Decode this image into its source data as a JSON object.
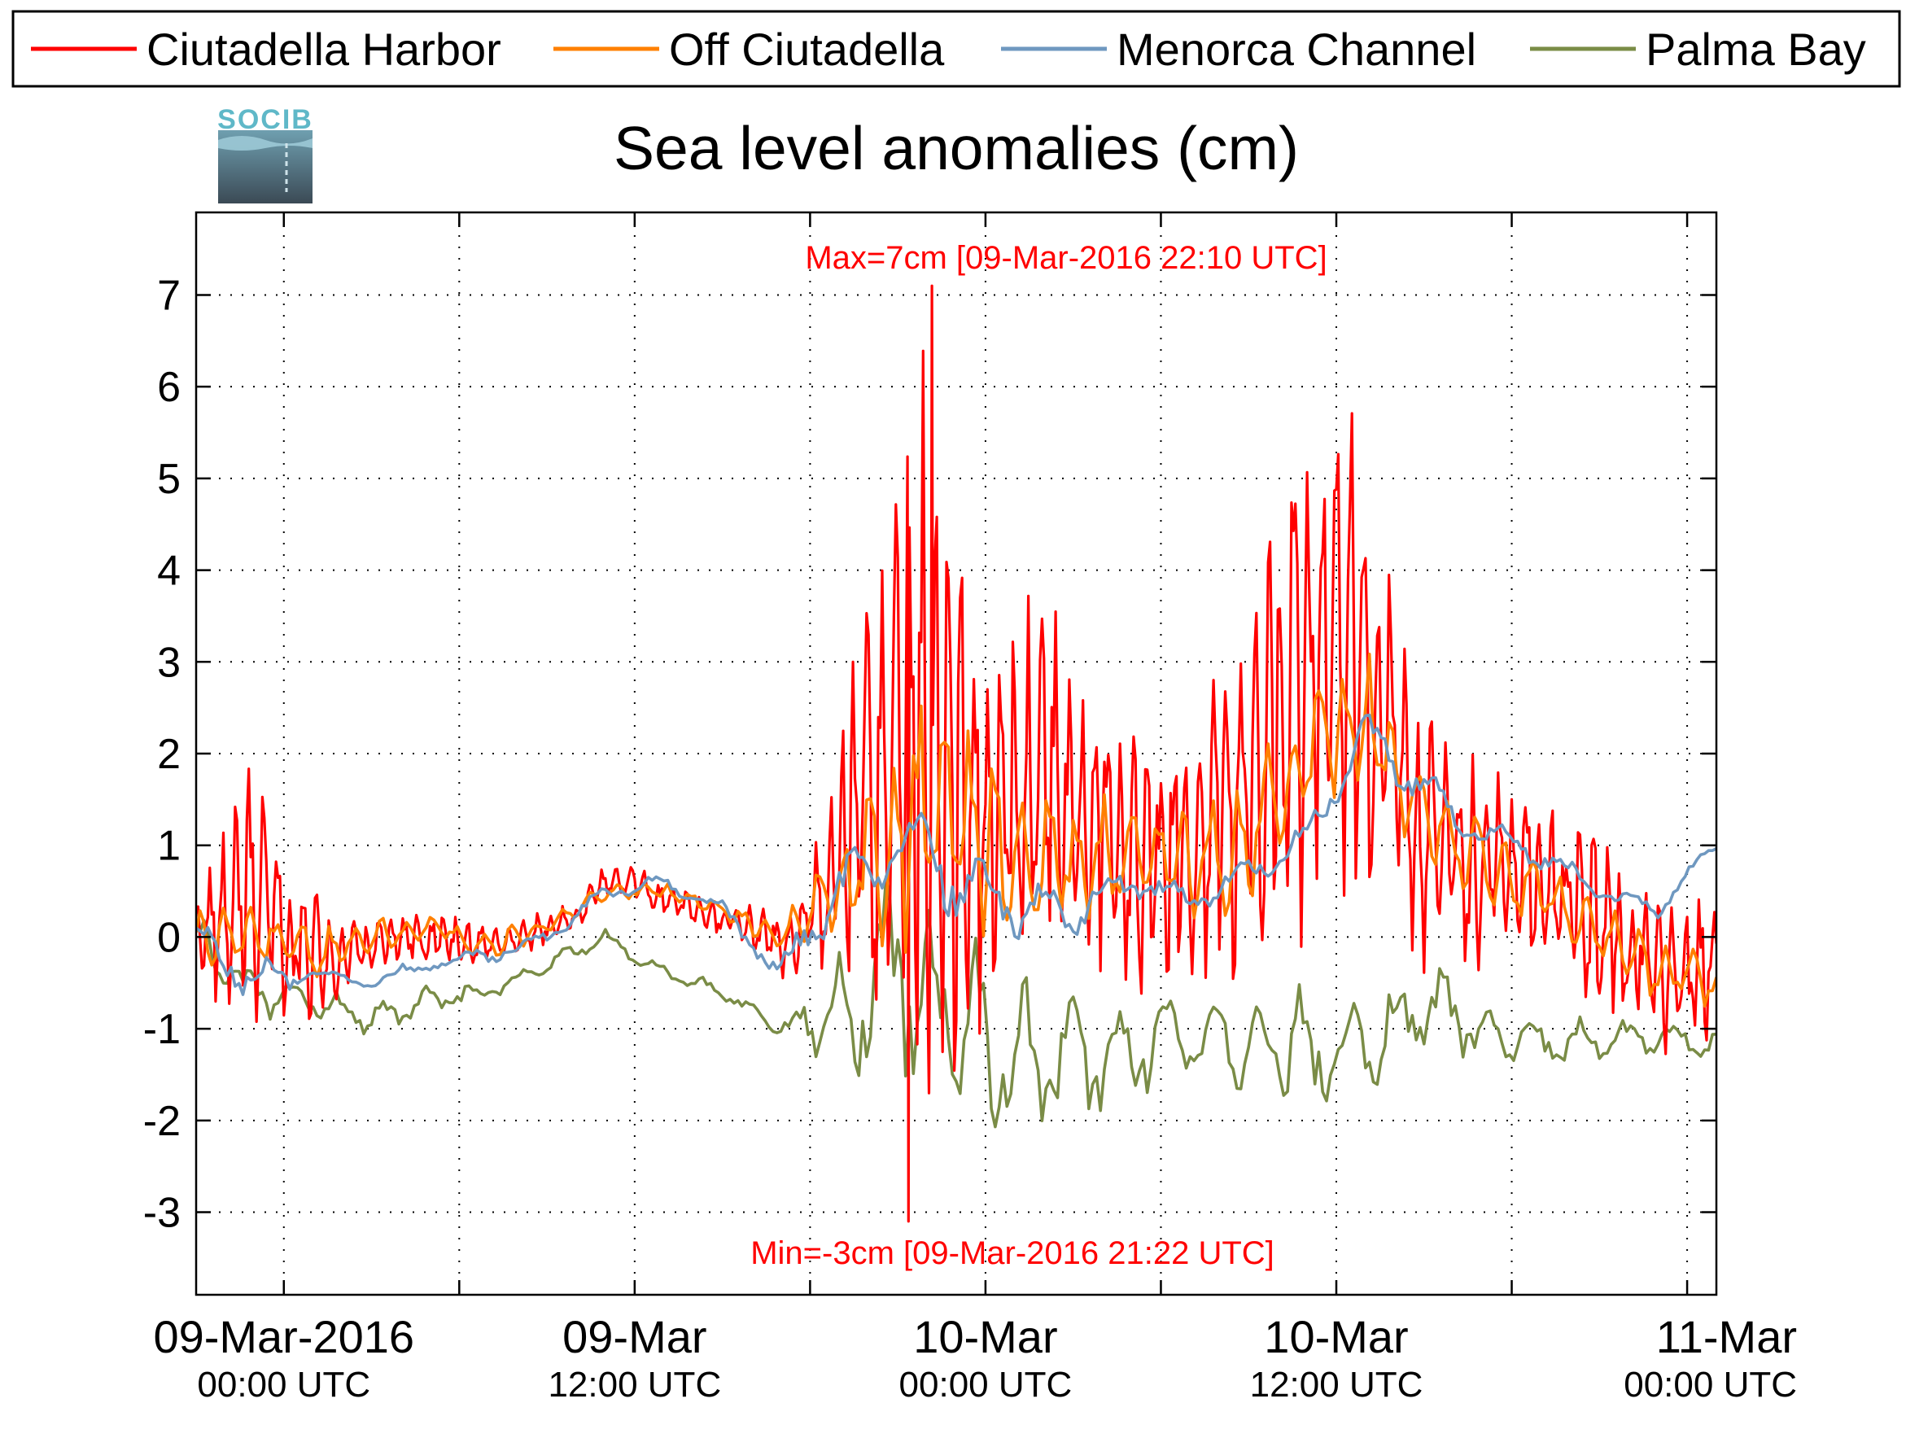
{
  "chart_data": {
    "type": "line",
    "title": "Sea level anomalies (cm)",
    "xlabel": "",
    "ylabel": "",
    "ylim": [
      -3.9,
      7.9
    ],
    "xlim": [
      "2016-03-08T21:00",
      "2016-03-11T01:00"
    ],
    "grid": true,
    "legend_position": "top",
    "y_ticks": [
      -3,
      -2,
      -1,
      0,
      1,
      2,
      3,
      4,
      5,
      6,
      7
    ],
    "y_tick_labels": [
      "-3",
      "-2",
      "-1",
      "0",
      "1",
      "2",
      "3",
      "4",
      "5",
      "6",
      "7"
    ],
    "x_minor_ticks": [
      "2016-03-09T00:00",
      "2016-03-09T06:00",
      "2016-03-09T12:00",
      "2016-03-09T18:00",
      "2016-03-10T00:00",
      "2016-03-10T06:00",
      "2016-03-10T12:00",
      "2016-03-10T18:00",
      "2016-03-11T00:00"
    ],
    "x_tick_labels": [
      {
        "x": "2016-03-09T00:00",
        "main": "09-Mar-2016",
        "sub": "00:00 UTC"
      },
      {
        "x": "2016-03-09T12:00",
        "main": "09-Mar",
        "sub": "12:00 UTC"
      },
      {
        "x": "2016-03-10T00:00",
        "main": "10-Mar",
        "sub": "00:00 UTC"
      },
      {
        "x": "2016-03-10T12:00",
        "main": "10-Mar",
        "sub": "12:00 UTC"
      },
      {
        "x": "2016-03-11T00:00",
        "main": "11-Mar",
        "sub": "00:00 UTC"
      }
    ],
    "annotations": {
      "max_text": "Max=7cm [09-Mar-2016 22:10 UTC]",
      "min_text": "Min=-3cm [09-Mar-2016 21:22 UTC]"
    },
    "series": [
      {
        "name": "Ciutadella Harbor",
        "color": "#ff0000",
        "x": [
          "2016-03-08T21:00",
          "2016-03-08T22:00",
          "2016-03-08T23:00",
          "2016-03-09T00:00",
          "2016-03-09T01:00",
          "2016-03-09T02:00",
          "2016-03-09T03:00",
          "2016-03-09T04:00",
          "2016-03-09T05:00",
          "2016-03-09T06:00",
          "2016-03-09T07:00",
          "2016-03-09T08:00",
          "2016-03-09T09:00",
          "2016-03-09T10:00",
          "2016-03-09T11:00",
          "2016-03-09T12:00",
          "2016-03-09T13:00",
          "2016-03-09T14:00",
          "2016-03-09T15:00",
          "2016-03-09T16:00",
          "2016-03-09T17:00",
          "2016-03-09T18:00",
          "2016-03-09T19:00",
          "2016-03-09T20:00",
          "2016-03-09T21:00",
          "2016-03-09T22:00",
          "2016-03-09T23:00",
          "2016-03-10T00:00",
          "2016-03-10T01:00",
          "2016-03-10T02:00",
          "2016-03-10T03:00",
          "2016-03-10T04:00",
          "2016-03-10T05:00",
          "2016-03-10T06:00",
          "2016-03-10T07:00",
          "2016-03-10T08:00",
          "2016-03-10T09:00",
          "2016-03-10T10:00",
          "2016-03-10T11:00",
          "2016-03-10T12:00",
          "2016-03-10T13:00",
          "2016-03-10T14:00",
          "2016-03-10T15:00",
          "2016-03-10T16:00",
          "2016-03-10T17:00",
          "2016-03-10T18:00",
          "2016-03-10T19:00",
          "2016-03-10T20:00",
          "2016-03-10T21:00",
          "2016-03-10T22:00",
          "2016-03-10T23:00",
          "2016-03-11T00:00",
          "2016-03-11T01:00"
        ],
        "y": [
          0.1,
          0.2,
          0.5,
          0.2,
          -0.3,
          -0.2,
          -0.1,
          0.0,
          0.0,
          0.0,
          -0.1,
          0.0,
          0.1,
          0.2,
          0.6,
          0.6,
          0.4,
          0.3,
          0.2,
          0.1,
          -0.1,
          0.2,
          0.8,
          1.5,
          2.0,
          2.4,
          1.6,
          1.2,
          1.5,
          1.7,
          1.5,
          1.3,
          0.9,
          0.8,
          1.0,
          1.3,
          1.9,
          2.6,
          3.0,
          3.3,
          2.8,
          1.9,
          1.2,
          1.0,
          0.9,
          0.7,
          0.6,
          0.4,
          0.1,
          -0.2,
          -0.4,
          -0.4,
          -0.3
        ],
        "amp": [
          0.5,
          1.2,
          1.6,
          1.3,
          0.9,
          0.5,
          0.4,
          0.3,
          0.3,
          0.3,
          0.2,
          0.2,
          0.2,
          0.2,
          0.2,
          0.2,
          0.2,
          0.2,
          0.2,
          0.3,
          0.4,
          0.6,
          1.4,
          2.6,
          3.8,
          4.8,
          3.5,
          2.5,
          2.2,
          2.2,
          2.0,
          1.8,
          1.6,
          1.5,
          1.6,
          1.9,
          2.4,
          3.0,
          3.5,
          3.4,
          2.8,
          2.2,
          1.6,
          1.4,
          1.3,
          1.2,
          1.1,
          1.1,
          1.2,
          1.1,
          1.0,
          0.9,
          0.8
        ]
      },
      {
        "name": "Off Ciutadella",
        "color": "#ff8000",
        "x": [
          "2016-03-08T21:00",
          "2016-03-08T23:00",
          "2016-03-09T01:00",
          "2016-03-09T03:00",
          "2016-03-09T05:00",
          "2016-03-09T07:00",
          "2016-03-09T09:00",
          "2016-03-09T11:00",
          "2016-03-09T13:00",
          "2016-03-09T15:00",
          "2016-03-09T17:00",
          "2016-03-09T19:00",
          "2016-03-09T21:00",
          "2016-03-09T23:00",
          "2016-03-10T01:00",
          "2016-03-10T03:00",
          "2016-03-10T05:00",
          "2016-03-10T07:00",
          "2016-03-10T09:00",
          "2016-03-10T11:00",
          "2016-03-10T13:00",
          "2016-03-10T15:00",
          "2016-03-10T17:00",
          "2016-03-10T19:00",
          "2016-03-10T21:00",
          "2016-03-10T23:00",
          "2016-03-11T01:00"
        ],
        "y": [
          0.0,
          0.0,
          -0.2,
          0.0,
          0.1,
          -0.1,
          0.1,
          0.5,
          0.5,
          0.3,
          0.0,
          0.6,
          1.2,
          1.3,
          0.8,
          0.8,
          0.9,
          0.8,
          1.0,
          2.0,
          2.4,
          1.3,
          0.8,
          0.5,
          0.1,
          -0.4,
          -0.5
        ],
        "amp": [
          0.3,
          0.4,
          0.3,
          0.2,
          0.2,
          0.2,
          0.1,
          0.1,
          0.1,
          0.1,
          0.2,
          0.5,
          1.4,
          1.6,
          0.9,
          0.8,
          0.7,
          0.7,
          0.8,
          0.9,
          0.8,
          0.6,
          0.5,
          0.4,
          0.4,
          0.4,
          0.3
        ]
      },
      {
        "name": "Menorca Channel",
        "color": "#6f98c0",
        "x": [
          "2016-03-08T21:00",
          "2016-03-08T23:00",
          "2016-03-09T01:00",
          "2016-03-09T03:00",
          "2016-03-09T05:00",
          "2016-03-09T07:00",
          "2016-03-09T09:00",
          "2016-03-09T11:00",
          "2016-03-09T13:00",
          "2016-03-09T15:00",
          "2016-03-09T17:00",
          "2016-03-09T19:00",
          "2016-03-09T21:00",
          "2016-03-09T23:00",
          "2016-03-10T01:00",
          "2016-03-10T03:00",
          "2016-03-10T05:00",
          "2016-03-10T07:00",
          "2016-03-10T09:00",
          "2016-03-10T11:00",
          "2016-03-10T13:00",
          "2016-03-10T15:00",
          "2016-03-10T17:00",
          "2016-03-10T19:00",
          "2016-03-10T21:00",
          "2016-03-10T23:00",
          "2016-03-11T01:00"
        ],
        "y": [
          0.0,
          -0.5,
          -0.4,
          -0.5,
          -0.3,
          -0.2,
          0.0,
          0.5,
          0.6,
          0.3,
          -0.4,
          0.5,
          1.0,
          0.7,
          0.3,
          0.3,
          0.6,
          0.4,
          0.7,
          1.1,
          2.2,
          1.6,
          1.1,
          0.9,
          0.5,
          0.3,
          1.0
        ],
        "amp": [
          0.2,
          0.3,
          0.1,
          0.1,
          0.1,
          0.1,
          0.1,
          0.1,
          0.1,
          0.1,
          0.2,
          0.4,
          0.4,
          0.6,
          0.4,
          0.3,
          0.2,
          0.2,
          0.2,
          0.2,
          0.3,
          0.3,
          0.2,
          0.2,
          0.1,
          0.1,
          0.1
        ]
      },
      {
        "name": "Palma Bay",
        "color": "#7a8c46",
        "x": [
          "2016-03-08T21:00",
          "2016-03-08T23:00",
          "2016-03-09T01:00",
          "2016-03-09T03:00",
          "2016-03-09T05:00",
          "2016-03-09T07:00",
          "2016-03-09T09:00",
          "2016-03-09T11:00",
          "2016-03-09T13:00",
          "2016-03-09T15:00",
          "2016-03-09T17:00",
          "2016-03-09T19:00",
          "2016-03-09T21:00",
          "2016-03-09T23:00",
          "2016-03-10T01:00",
          "2016-03-10T03:00",
          "2016-03-10T05:00",
          "2016-03-10T07:00",
          "2016-03-10T09:00",
          "2016-03-10T11:00",
          "2016-03-10T13:00",
          "2016-03-10T15:00",
          "2016-03-10T17:00",
          "2016-03-10T19:00",
          "2016-03-10T21:00",
          "2016-03-10T23:00",
          "2016-03-11T01:00"
        ],
        "y": [
          0.0,
          -0.6,
          -0.7,
          -0.9,
          -0.7,
          -0.6,
          -0.3,
          0.0,
          -0.4,
          -0.6,
          -1.0,
          -0.8,
          -0.3,
          -1.0,
          -1.3,
          -1.4,
          -1.2,
          -1.0,
          -1.1,
          -1.3,
          -1.1,
          -0.8,
          -1.0,
          -1.2,
          -1.1,
          -1.1,
          -1.2
        ],
        "amp": [
          0.3,
          0.3,
          0.2,
          0.2,
          0.2,
          0.1,
          0.1,
          0.1,
          0.1,
          0.1,
          0.1,
          0.7,
          1.3,
          1.2,
          1.0,
          0.8,
          0.6,
          0.6,
          0.7,
          0.8,
          0.7,
          0.6,
          0.4,
          0.3,
          0.3,
          0.2,
          0.2
        ]
      }
    ],
    "extremes": {
      "max": {
        "x": "2016-03-09T22:10",
        "y": 7.1
      },
      "min": {
        "x": "2016-03-09T21:22",
        "y": -3.1
      }
    }
  },
  "logo": {
    "text": "SOCIB",
    "top_color": "#5fb8c8",
    "bottom_color": "#3b5060"
  },
  "colors": {
    "axis": "#000000",
    "grid": "#000000",
    "background": "#ffffff"
  }
}
